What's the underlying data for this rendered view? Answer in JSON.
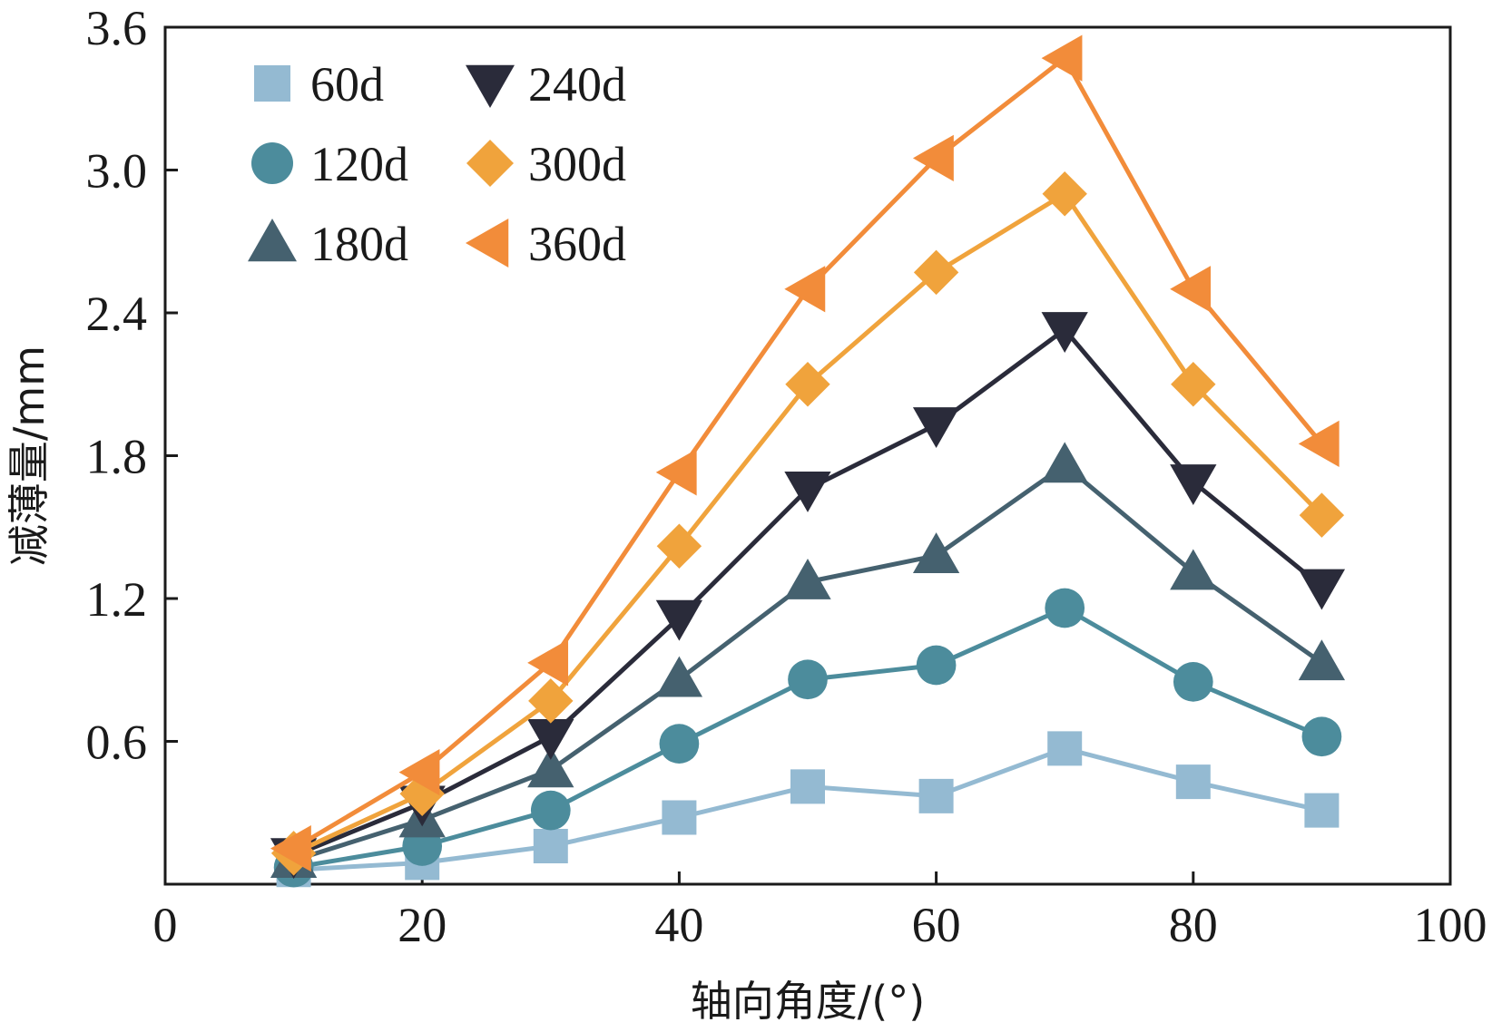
{
  "chart_data": {
    "type": "line",
    "xlabel": "轴向角度/(°)",
    "ylabel": "减薄量/mm",
    "xlim": [
      0,
      100
    ],
    "ylim": [
      0.0,
      3.6
    ],
    "xticks": [
      0,
      20,
      40,
      60,
      80,
      100
    ],
    "yticks": [
      0.6,
      1.2,
      1.8,
      2.4,
      3.0,
      3.6
    ],
    "xtick_labels": [
      "0",
      "20",
      "40",
      "60",
      "80",
      "100"
    ],
    "ytick_labels": [
      "0.6",
      "1.2",
      "1.8",
      "2.4",
      "3.0",
      "3.6"
    ],
    "grid": false,
    "legend_position": "top-left",
    "x": [
      10,
      20,
      30,
      40,
      50,
      60,
      70,
      80,
      90
    ],
    "series": [
      {
        "name": "60d",
        "marker": "square",
        "color": "#94bad2",
        "values": [
          0.06,
          0.09,
          0.16,
          0.28,
          0.41,
          0.37,
          0.57,
          0.43,
          0.31
        ]
      },
      {
        "name": "120d",
        "marker": "circle",
        "color": "#4c8c9c",
        "values": [
          0.07,
          0.16,
          0.31,
          0.59,
          0.86,
          0.92,
          1.16,
          0.85,
          0.62
        ]
      },
      {
        "name": "180d",
        "marker": "triangle-up",
        "color": "#45616f",
        "values": [
          0.1,
          0.27,
          0.48,
          0.86,
          1.27,
          1.38,
          1.76,
          1.31,
          0.93
        ]
      },
      {
        "name": "240d",
        "marker": "triangle-down",
        "color": "#2a2b3a",
        "values": [
          0.12,
          0.34,
          0.62,
          1.12,
          1.66,
          1.93,
          2.33,
          1.69,
          1.25
        ]
      },
      {
        "name": "300d",
        "marker": "diamond",
        "color": "#f0a33c",
        "values": [
          0.13,
          0.38,
          0.77,
          1.42,
          2.1,
          2.57,
          2.9,
          2.1,
          1.55
        ]
      },
      {
        "name": "360d",
        "marker": "triangle-left",
        "color": "#f28c3a",
        "values": [
          0.15,
          0.47,
          0.93,
          1.73,
          2.5,
          3.05,
          3.47,
          2.5,
          1.85
        ]
      }
    ]
  }
}
